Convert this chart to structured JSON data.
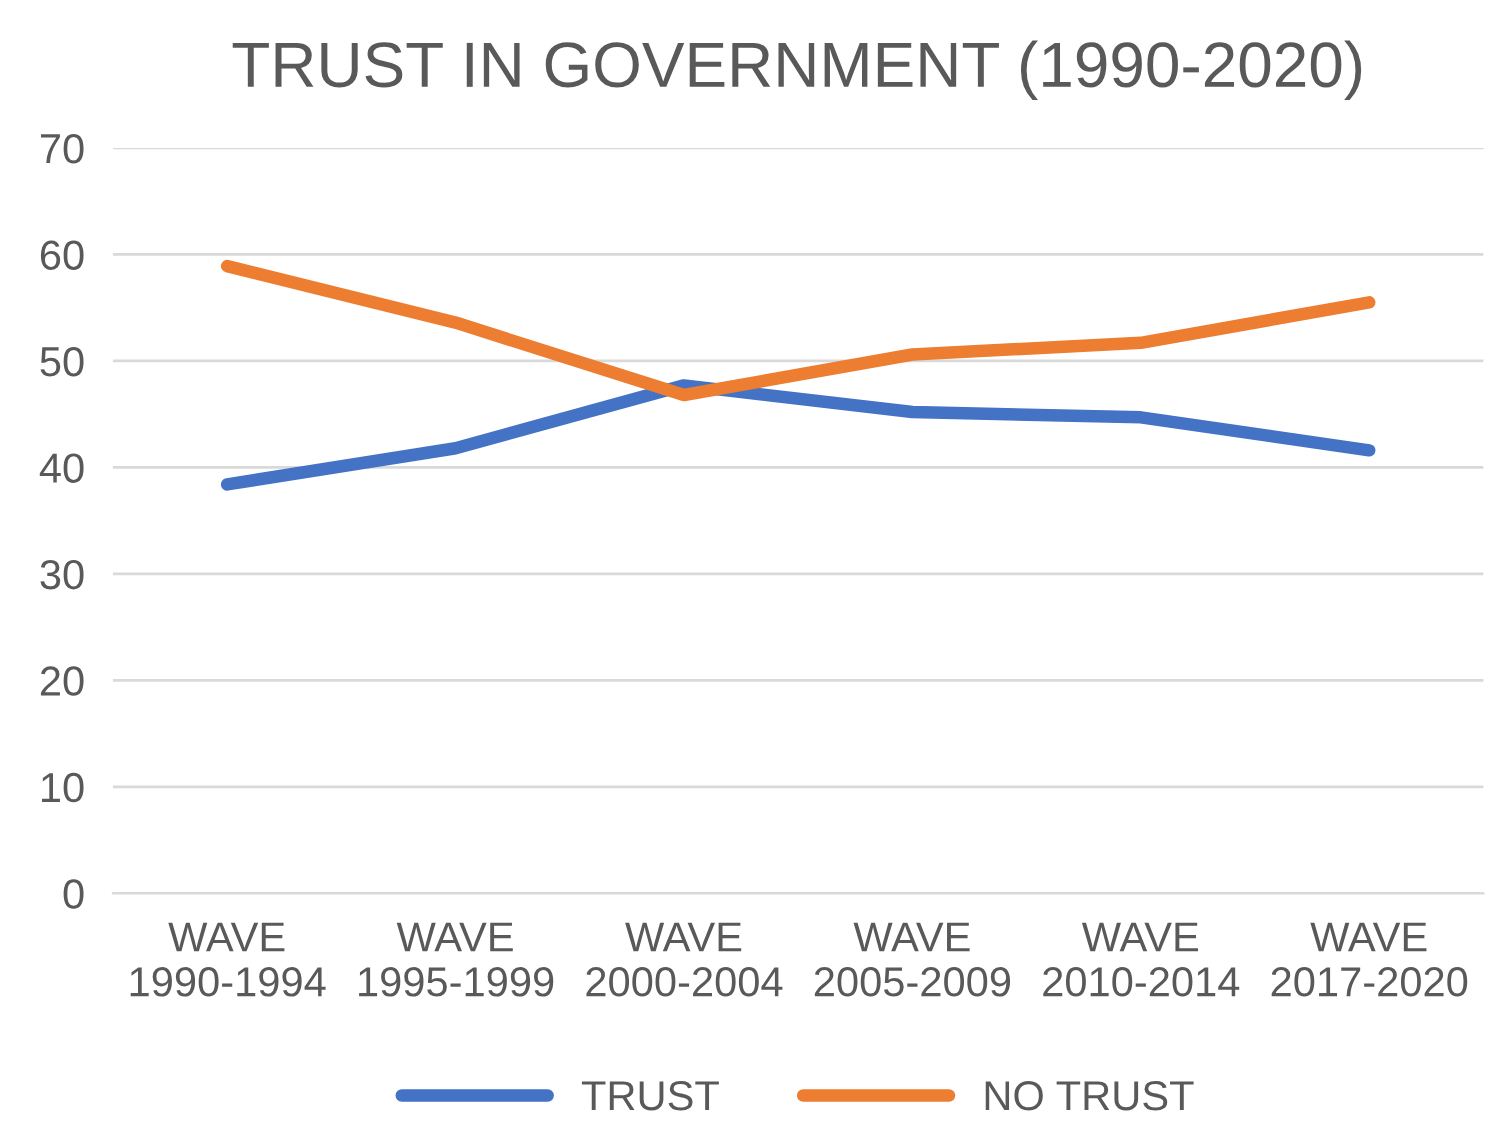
{
  "chart_data": {
    "type": "line",
    "title": "TRUST IN GOVERNMENT (1990-2020)",
    "categories": [
      "WAVE\n1990-1994",
      "WAVE\n1995-1999",
      "WAVE\n2000-2004",
      "WAVE\n2005-2009",
      "WAVE\n2010-2014",
      "WAVE\n2017-2020"
    ],
    "series": [
      {
        "name": "TRUST",
        "color": "#4472c4",
        "values": [
          38.4,
          41.8,
          47.7,
          45.2,
          44.7,
          41.6
        ]
      },
      {
        "name": "NO TRUST",
        "color": "#ed7d31",
        "values": [
          58.9,
          53.6,
          46.8,
          50.6,
          51.7,
          55.5
        ]
      }
    ],
    "ylim": [
      0,
      70
    ],
    "yticks": [
      0,
      10,
      20,
      30,
      40,
      50,
      60,
      70
    ],
    "grid": "y",
    "legend": "bottom",
    "marker": "none",
    "line_style": "solid"
  }
}
